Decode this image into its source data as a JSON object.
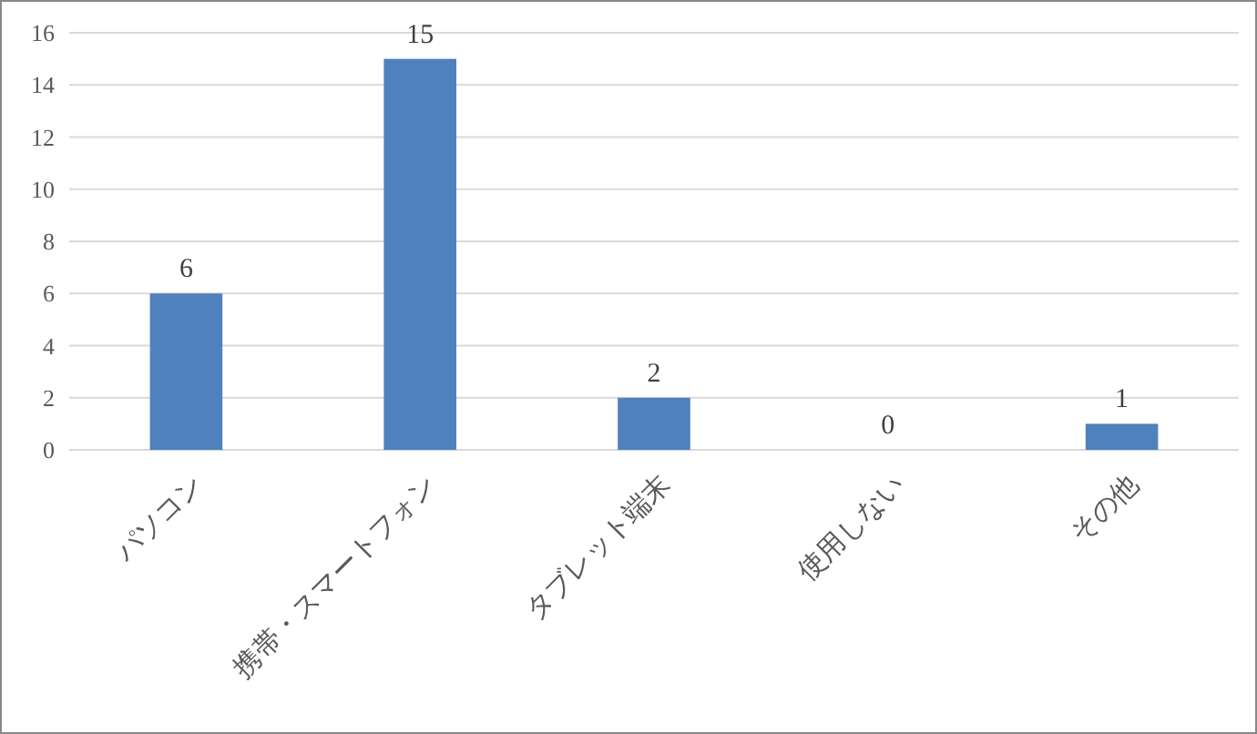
{
  "chart_data": {
    "type": "bar",
    "categories": [
      "パソコン",
      "携帯・スマートフォン",
      "タブレット端末",
      "使用しない",
      "その他"
    ],
    "values": [
      6,
      15,
      2,
      0,
      1
    ],
    "color": "#4f81bd",
    "ylim": [
      0,
      16
    ],
    "yticks": [
      0,
      2,
      4,
      6,
      8,
      10,
      12,
      14,
      16
    ],
    "grid": "y",
    "data_labels": true
  }
}
